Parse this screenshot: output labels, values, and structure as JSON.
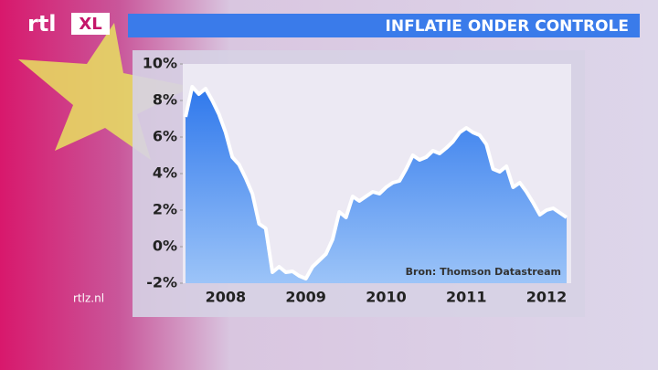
{
  "logo": "rtl",
  "logo_badge": "XL",
  "site": "rtlz.nl",
  "chart_data": {
    "type": "area",
    "title": "INFLATIE ONDER CONTROLE",
    "source": "Bron: Thomson Datastream",
    "categories": [
      null,
      null,
      null,
      null,
      null,
      null,
      "2008",
      null,
      null,
      null,
      null,
      null,
      null,
      null,
      null,
      null,
      null,
      null,
      "2009",
      null,
      null,
      null,
      null,
      null,
      null,
      null,
      null,
      null,
      null,
      null,
      "2010",
      null,
      null,
      null,
      null,
      null,
      null,
      null,
      null,
      null,
      null,
      null,
      "2011",
      null,
      null,
      null,
      null,
      null,
      null,
      null,
      null,
      null,
      null,
      null,
      "2012",
      null,
      null,
      null
    ],
    "series": [
      {
        "color": "#ffffff",
        "area_color": "#3d86f0",
        "values": [
          7.1,
          8.75,
          8.35,
          8.65,
          8.0,
          7.25,
          6.25,
          4.9,
          4.5,
          3.75,
          2.9,
          1.25,
          1.0,
          -1.4,
          -1.1,
          -1.4,
          -1.35,
          -1.6,
          -1.75,
          -1.1,
          -0.75,
          -0.4,
          0.4,
          1.9,
          1.6,
          2.75,
          2.5,
          2.75,
          3.0,
          2.9,
          3.25,
          3.5,
          3.6,
          4.25,
          5.0,
          4.75,
          4.9,
          5.25,
          5.1,
          5.4,
          5.75,
          6.25,
          6.5,
          6.25,
          6.1,
          5.6,
          4.25,
          4.1,
          4.4,
          3.25,
          3.5,
          3.0,
          2.4,
          1.75,
          2.0,
          2.1,
          1.85,
          1.6
        ]
      }
    ],
    "ylim": [
      -2,
      10
    ],
    "yticks": [
      {
        "value": -2,
        "label": "-2%"
      },
      {
        "value": 0,
        "label": "0%"
      },
      {
        "value": 2,
        "label": "2%"
      },
      {
        "value": 4,
        "label": "4%"
      },
      {
        "value": 6,
        "label": "6%"
      },
      {
        "value": 8,
        "label": "8%"
      },
      {
        "value": 10,
        "label": "10%"
      }
    ],
    "grid": false
  }
}
